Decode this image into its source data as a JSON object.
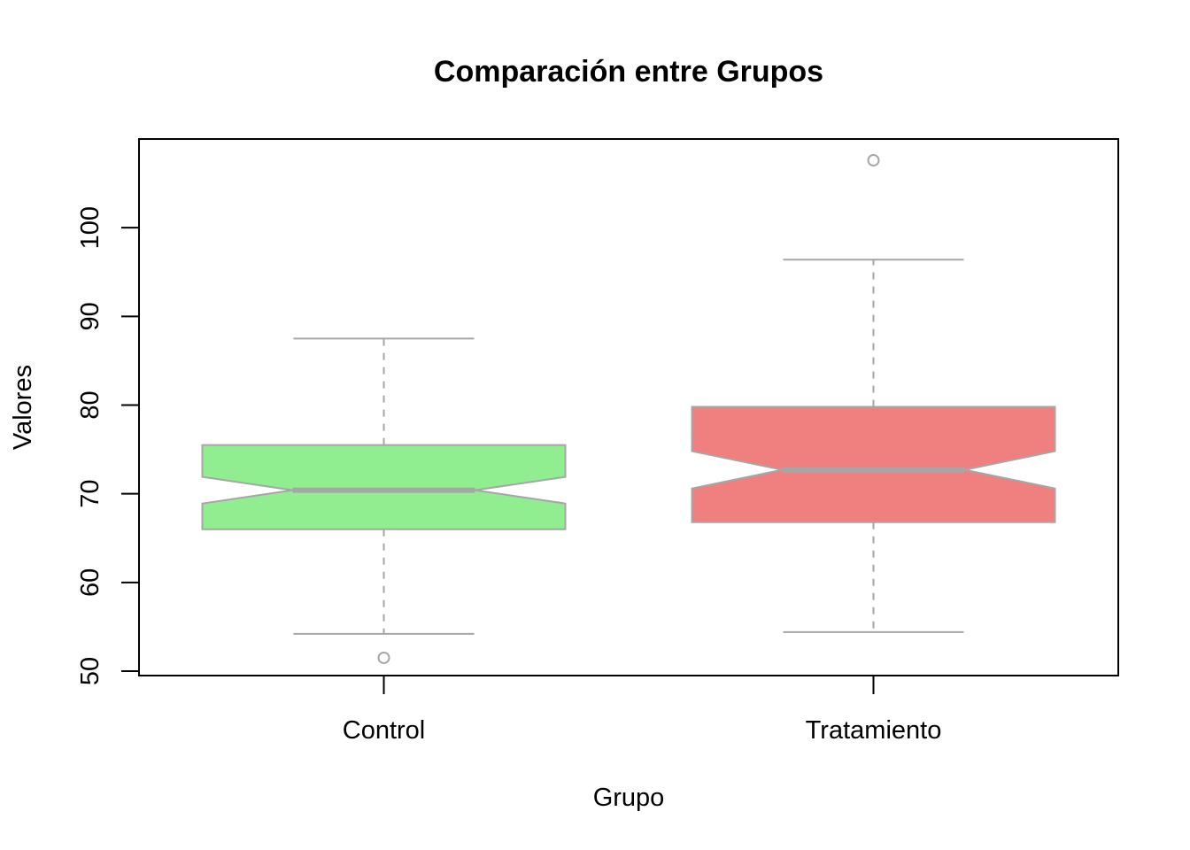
{
  "chart_data": {
    "type": "boxplot",
    "title": "Comparación entre Grupos",
    "xlabel": "Grupo",
    "ylabel": "Valores",
    "ylim": [
      49.5,
      110
    ],
    "yticks": [
      50,
      60,
      70,
      80,
      90,
      100
    ],
    "notched": true,
    "grid": false,
    "categories": [
      "Control",
      "Tratamiento"
    ],
    "boxes": [
      {
        "name": "Control",
        "whisker_low": 54.2,
        "q1": 66.0,
        "median": 70.4,
        "q3": 75.5,
        "whisker_high": 87.5,
        "notch_low": 68.9,
        "notch_high": 71.9,
        "outliers": [
          51.5
        ],
        "fill": "#90EE90"
      },
      {
        "name": "Tratamiento",
        "whisker_low": 54.4,
        "q1": 66.8,
        "median": 72.7,
        "q3": 79.8,
        "whisker_high": 96.4,
        "notch_low": 70.6,
        "notch_high": 74.8,
        "outliers": [
          107.6
        ],
        "fill": "#F08080"
      }
    ],
    "colors": {
      "box_border": "#a6a6a6",
      "frame": "#000000"
    }
  }
}
